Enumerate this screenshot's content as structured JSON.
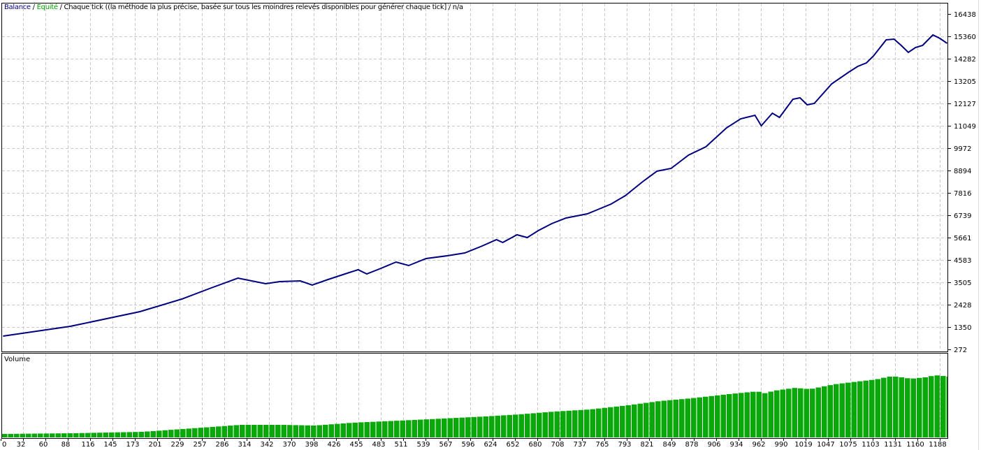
{
  "header": {
    "balance_label": "Balance",
    "separator": " / ",
    "equity_label": "Equité",
    "model_text": " / Chaque tick ((la méthode la plus précise, basée sur tous les moindres relevés disponibles pour générer chaque tick] / n/a"
  },
  "colors": {
    "balance": "#000080",
    "equity": "#00a000",
    "volume": "#0aa80a",
    "grid": "#c8c8c8"
  },
  "chart_data": [
    {
      "type": "line",
      "title": "",
      "series": [
        {
          "name": "Balance",
          "points": [
            [
              3,
              912
            ],
            [
              88,
              1383
            ],
            [
              176,
              2091
            ],
            [
              229,
              2697
            ],
            [
              264,
              3202
            ],
            [
              300,
              3707
            ],
            [
              335,
              3438
            ],
            [
              353,
              3539
            ],
            [
              379,
              3573
            ],
            [
              394,
              3371
            ],
            [
              414,
              3640
            ],
            [
              441,
              3977
            ],
            [
              452,
              4112
            ],
            [
              463,
              3909
            ],
            [
              481,
              4179
            ],
            [
              500,
              4482
            ],
            [
              516,
              4314
            ],
            [
              538,
              4650
            ],
            [
              565,
              4785
            ],
            [
              587,
              4920
            ],
            [
              609,
              5257
            ],
            [
              627,
              5560
            ],
            [
              635,
              5425
            ],
            [
              653,
              5796
            ],
            [
              666,
              5661
            ],
            [
              680,
              5998
            ],
            [
              697,
              6334
            ],
            [
              715,
              6604
            ],
            [
              742,
              6806
            ],
            [
              755,
              7008
            ],
            [
              772,
              7277
            ],
            [
              790,
              7682
            ],
            [
              812,
              8355
            ],
            [
              830,
              8860
            ],
            [
              848,
              8995
            ],
            [
              870,
              9635
            ],
            [
              892,
              10039
            ],
            [
              918,
              10949
            ],
            [
              936,
              11386
            ],
            [
              954,
              11555
            ],
            [
              962,
              11050
            ],
            [
              976,
              11656
            ],
            [
              985,
              11454
            ],
            [
              1002,
              12329
            ],
            [
              1011,
              12397
            ],
            [
              1020,
              12060
            ],
            [
              1029,
              12127
            ],
            [
              1051,
              13070
            ],
            [
              1073,
              13643
            ],
            [
              1084,
              13912
            ],
            [
              1095,
              14081
            ],
            [
              1104,
              14418
            ],
            [
              1120,
              15193
            ],
            [
              1130,
              15226
            ],
            [
              1139,
              14923
            ],
            [
              1148,
              14586
            ],
            [
              1157,
              14822
            ],
            [
              1166,
              14923
            ],
            [
              1179,
              15429
            ],
            [
              1188,
              15260
            ],
            [
              1197,
              15024
            ]
          ]
        }
      ],
      "y_ticks": [
        "16438",
        "15360",
        "14282",
        "13205",
        "12127",
        "11049",
        "9972",
        "8894",
        "7816",
        "6739",
        "5661",
        "4583",
        "3505",
        "2428",
        "1350",
        "272"
      ],
      "ylim": [
        272,
        16438
      ],
      "xlim": [
        0,
        1197
      ],
      "grid": true,
      "y_axis_side": "right"
    },
    {
      "type": "bar",
      "title": "Volume",
      "series": [
        {
          "points": [
            [
              0,
              5
            ],
            [
              88,
              6
            ],
            [
              176,
              8
            ],
            [
              264,
              15
            ],
            [
              300,
              18
            ],
            [
              353,
              18
            ],
            [
              394,
              17
            ],
            [
              441,
              21
            ],
            [
              500,
              24
            ],
            [
              538,
              26
            ],
            [
              609,
              30
            ],
            [
              653,
              33
            ],
            [
              697,
              37
            ],
            [
              742,
              40
            ],
            [
              790,
              46
            ],
            [
              830,
              52
            ],
            [
              870,
              56
            ],
            [
              918,
              62
            ],
            [
              954,
              66
            ],
            [
              962,
              63
            ],
            [
              976,
              67
            ],
            [
              1002,
              71
            ],
            [
              1020,
              69
            ],
            [
              1051,
              76
            ],
            [
              1073,
              79
            ],
            [
              1104,
              83
            ],
            [
              1120,
              87
            ],
            [
              1130,
              87
            ],
            [
              1148,
              84
            ],
            [
              1166,
              86
            ],
            [
              1179,
              89
            ],
            [
              1197,
              87
            ]
          ]
        }
      ]
    }
  ],
  "x_ticks": [
    "0",
    "32",
    "60",
    "88",
    "116",
    "145",
    "173",
    "201",
    "229",
    "257",
    "286",
    "314",
    "342",
    "370",
    "398",
    "426",
    "455",
    "483",
    "511",
    "539",
    "567",
    "596",
    "624",
    "652",
    "680",
    "708",
    "737",
    "765",
    "793",
    "821",
    "849",
    "878",
    "906",
    "934",
    "962",
    "990",
    "1019",
    "1047",
    "1075",
    "1103",
    "1131",
    "1160",
    "1188"
  ]
}
